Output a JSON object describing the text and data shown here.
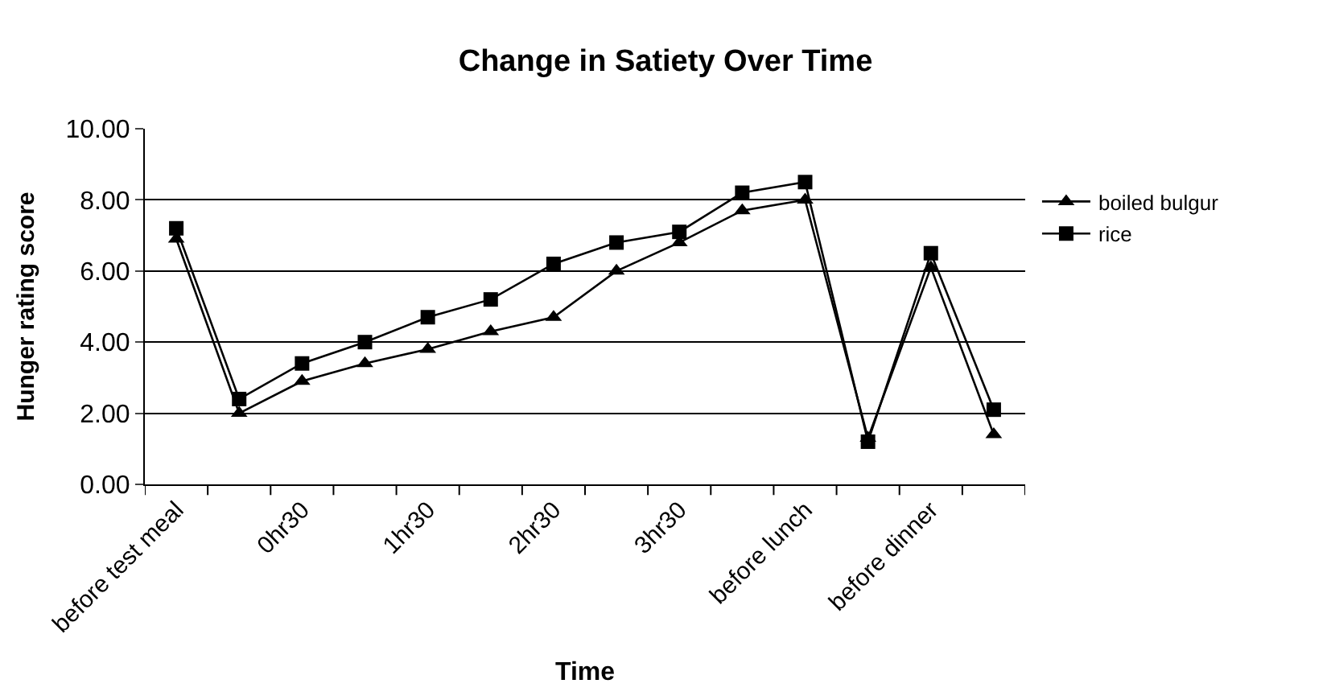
{
  "chart_data": {
    "type": "line",
    "title": "Change in Satiety Over Time",
    "xlabel": "Time",
    "ylabel": "Hunger rating score",
    "categories": [
      "before test meal",
      null,
      "0hr30",
      null,
      "1hr30",
      null,
      "2hr30",
      null,
      "3hr30",
      null,
      "before lunch",
      null,
      "before dinner",
      null
    ],
    "series": [
      {
        "name": "boiled bulgur",
        "color": "#000000",
        "marker": "triangle",
        "values": [
          6.9,
          2.0,
          2.9,
          3.4,
          3.8,
          4.3,
          4.7,
          6.0,
          6.8,
          7.7,
          8.0,
          1.3,
          6.1,
          1.4
        ]
      },
      {
        "name": "rice",
        "color": "#000000",
        "marker": "square",
        "values": [
          7.2,
          2.4,
          3.4,
          4.0,
          4.7,
          5.2,
          6.2,
          6.8,
          7.1,
          8.2,
          8.5,
          1.2,
          6.5,
          2.1
        ]
      }
    ],
    "ylim": [
      0,
      10
    ],
    "yticks": [
      {
        "value": 0,
        "label": "0.00"
      },
      {
        "value": 2,
        "label": "2.00"
      },
      {
        "value": 4,
        "label": "4.00"
      },
      {
        "value": 6,
        "label": "6.00"
      },
      {
        "value": 8,
        "label": "8.00"
      },
      {
        "value": 10,
        "label": "10.00"
      }
    ],
    "grid": "y",
    "legend": "right",
    "line_style": "solid"
  }
}
